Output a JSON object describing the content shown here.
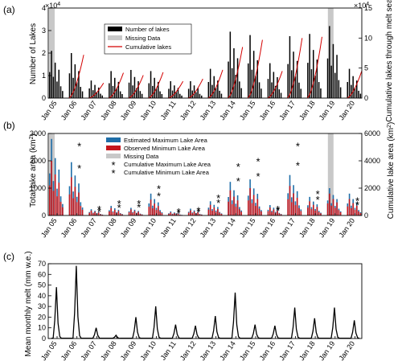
{
  "figure": {
    "ticks": [
      "Jan 05",
      "Jan 06",
      "Jan 07",
      "Jan 08",
      "Jan 09",
      "Jan 10",
      "Jan 11",
      "Jan 12",
      "Jan 13",
      "Jan 14",
      "Jan 15",
      "Jan 16",
      "Jan 17",
      "Jan 18",
      "Jan 19",
      "Jan 20"
    ]
  },
  "chart_data": [
    {
      "panel": "(a)",
      "type": "bar",
      "ylabel": "Number of Lakes",
      "ylabel_right": "Cumulative lakes through melt season",
      "ylim": [
        0,
        40000
      ],
      "y_ticks": [
        "0",
        "1",
        "2",
        "3",
        "4"
      ],
      "y_exponent": "×10",
      "y_exponent_power": "4",
      "ylim_right": [
        0,
        150000
      ],
      "y_ticks_right": [
        "0",
        "5",
        "10",
        "15"
      ],
      "y_exponent_right": "×10",
      "y_exponent_power_right": "4",
      "legend": {
        "position": "top-center",
        "entries": [
          {
            "label": "Number of lakes",
            "color": "#000000",
            "kind": "bar"
          },
          {
            "label": "Missing Data",
            "color": "#c8c8c8",
            "kind": "bar"
          },
          {
            "label": "Cumulative lakes",
            "color": "#d40000",
            "kind": "line"
          }
        ]
      },
      "missing_data": [
        "Jan 05",
        "Jan 19"
      ],
      "series": [
        {
          "name": "Number of lakes",
          "peak_values": [
            21000,
            20000,
            7800,
            12000,
            12500,
            12000,
            7500,
            7500,
            13000,
            29500,
            28000,
            15500,
            27500,
            28500,
            32000,
            13000
          ]
        },
        {
          "name": "Cumulative lakes",
          "end_values": [
            0,
            72000,
            25000,
            42000,
            38000,
            43000,
            28000,
            32000,
            47000,
            85000,
            97000,
            45000,
            100000,
            102000,
            0,
            45000
          ]
        }
      ]
    },
    {
      "panel": "(b)",
      "type": "bar",
      "ylabel": "Total lake area (km",
      "ylabel_sup": "2",
      "ylabel_tail": ")",
      "ylabel_right": "Cumulative lake area (km",
      "ylabel_right_sup": "2",
      "ylabel_right_tail": ")",
      "ylim": [
        0,
        3000
      ],
      "y_ticks": [
        "0",
        "1000",
        "2000",
        "3000"
      ],
      "ylim_right": [
        0,
        6000
      ],
      "y_ticks_right": [
        "0",
        "2000",
        "4000",
        "6000"
      ],
      "legend": {
        "position": "top-center",
        "entries": [
          {
            "label": "Estimated Maximum Lake Area",
            "color": "#1f6ea8",
            "kind": "bar"
          },
          {
            "label": "Observed Minimum Lake Area",
            "color": "#c4161c",
            "kind": "bar"
          },
          {
            "label": "Missing Data",
            "color": "#c8c8c8",
            "kind": "bar"
          },
          {
            "label": "Cumulative Maximum Lake Area",
            "color": "#1f6ea8",
            "kind": "marker"
          },
          {
            "label": "Cumulative Minimum Lake Area",
            "color": "#c4161c",
            "kind": "marker"
          }
        ]
      },
      "missing_data": [
        "Jan 05",
        "Jan 19"
      ],
      "series": [
        {
          "name": "Estimated Maximum Lake Area",
          "peak_values": [
            2800,
            1950,
            230,
            350,
            280,
            800,
            150,
            250,
            520,
            1230,
            1320,
            380,
            1480,
            680,
            1000,
            800
          ]
        },
        {
          "name": "Observed Minimum Lake Area",
          "peak_values": [
            2000,
            1400,
            180,
            270,
            220,
            580,
            110,
            190,
            390,
            920,
            1000,
            290,
            1080,
            520,
            800,
            600
          ]
        },
        {
          "name": "Cumulative Maximum Lake Area",
          "values": [
            null,
            5200,
            600,
            1000,
            1000,
            2100,
            400,
            500,
            1400,
            3700,
            4100,
            600,
            5200,
            1700,
            null,
            1200
          ]
        },
        {
          "name": "Cumulative Minimum Lake Area",
          "values": [
            null,
            3600,
            400,
            700,
            750,
            1550,
            300,
            380,
            1050,
            2650,
            3000,
            500,
            3800,
            1300,
            null,
            900
          ]
        }
      ]
    },
    {
      "panel": "(c)",
      "type": "line",
      "ylabel": "Mean monthly melt (mm w.e.)",
      "ylim": [
        0,
        70
      ],
      "y_ticks": [
        "0",
        "10",
        "20",
        "30",
        "40",
        "50",
        "60",
        "70"
      ],
      "series": [
        {
          "name": "",
          "peak_values": [
            48,
            68,
            10,
            3,
            20,
            30,
            13,
            12,
            21,
            43,
            13,
            12,
            29,
            19,
            29,
            17
          ]
        }
      ]
    }
  ]
}
